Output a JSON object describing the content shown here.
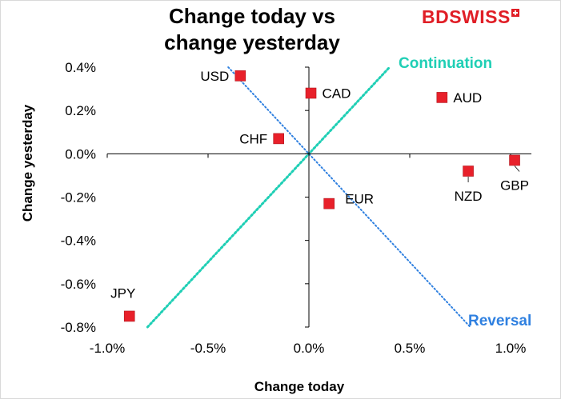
{
  "chart_data": {
    "type": "scatter",
    "title": "Change today vs change yesterday",
    "title_lines": [
      "Change today vs",
      "change yesterday"
    ],
    "xlabel": "Change today",
    "ylabel": "Change yesterday",
    "xlim": [
      -1.0,
      1.0
    ],
    "ylim": [
      -0.8,
      0.4
    ],
    "x_ticks": [
      -1.0,
      -0.5,
      0.0,
      0.5,
      1.0
    ],
    "x_tick_labels": [
      "-1.0%",
      "-0.5%",
      "0.0%",
      "0.5%",
      "1.0%"
    ],
    "y_ticks": [
      0.4,
      0.2,
      0.0,
      -0.2,
      -0.4,
      -0.6,
      -0.8
    ],
    "y_tick_labels": [
      "0.4%",
      "0.2%",
      "0.0%",
      "-0.2%",
      "-0.4%",
      "-0.6%",
      "-0.8%"
    ],
    "grid": false,
    "marker_color": "#e8202a",
    "points": [
      {
        "label": "USD",
        "x": -0.34,
        "y": 0.36,
        "label_pos": "left"
      },
      {
        "label": "CAD",
        "x": 0.01,
        "y": 0.28,
        "label_pos": "right"
      },
      {
        "label": "AUD",
        "x": 0.66,
        "y": 0.26,
        "label_pos": "right"
      },
      {
        "label": "CHF",
        "x": -0.15,
        "y": 0.07,
        "label_pos": "left"
      },
      {
        "label": "NZD",
        "x": 0.79,
        "y": -0.08,
        "label_pos": "below"
      },
      {
        "label": "GBP",
        "x": 1.02,
        "y": -0.03,
        "label_pos": "below"
      },
      {
        "label": "EUR",
        "x": 0.1,
        "y": -0.23,
        "label_pos": "right-above"
      },
      {
        "label": "JPY",
        "x": -0.89,
        "y": -0.75,
        "label_pos": "above"
      }
    ],
    "reference_lines": [
      {
        "name": "Continuation",
        "color": "#1fcfb5",
        "from": [
          -0.8,
          -0.8
        ],
        "to": [
          0.4,
          0.4
        ]
      },
      {
        "name": "Reversal",
        "color": "#2f80e0",
        "from": [
          -0.4,
          0.4
        ],
        "to": [
          0.8,
          -0.8
        ]
      }
    ]
  },
  "logo": {
    "text": "BDSWISS",
    "color": "#e01e26"
  }
}
